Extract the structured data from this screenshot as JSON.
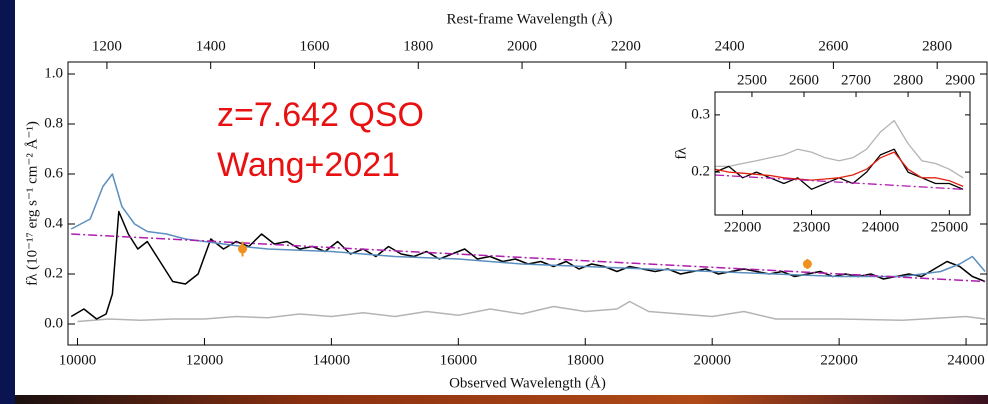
{
  "chart_data": [
    {
      "type": "line",
      "xlabel": "Observed Wavelength (Å)",
      "x2label": "Rest-frame Wavelength (Å)",
      "ylabel": "fλ (10⁻¹⁷ erg s⁻¹ cm⁻² Å⁻¹)",
      "annotations": [
        "z=7.642 QSO",
        "Wang+2021"
      ],
      "xlim": [
        9850,
        24330
      ],
      "xticks": [
        10000,
        12000,
        14000,
        16000,
        18000,
        20000,
        22000,
        24000
      ],
      "x2lim": [
        1125,
        2896
      ],
      "x2ticks": [
        1200,
        1400,
        1600,
        1800,
        2000,
        2200,
        2400,
        2600,
        2800
      ],
      "ylim": [
        -0.084,
        1.048
      ],
      "yticks": [
        {
          "value": 0,
          "label": "0.0"
        },
        0.2,
        0.4,
        0.6,
        0.8,
        {
          "value": 1,
          "label": "1.0"
        }
      ],
      "series": [
        {
          "type": "line",
          "color": "#b4b4b4",
          "x": [
            10000,
            10500,
            11000,
            11500,
            12000,
            12500,
            13000,
            13500,
            14000,
            14500,
            15000,
            15500,
            16000,
            16500,
            17000,
            17500,
            18000,
            18500,
            18700,
            19000,
            19500,
            20000,
            20500,
            21000,
            22000,
            23000,
            24000,
            24300
          ],
          "values": [
            0.01,
            0.02,
            0.015,
            0.02,
            0.02,
            0.03,
            0.025,
            0.04,
            0.03,
            0.045,
            0.03,
            0.05,
            0.035,
            0.06,
            0.04,
            0.07,
            0.05,
            0.06,
            0.09,
            0.05,
            0.04,
            0.03,
            0.05,
            0.02,
            0.02,
            0.015,
            0.03,
            0.02
          ]
        },
        {
          "type": "line",
          "color": "#000000",
          "x": [
            9900,
            10100,
            10300,
            10450,
            10550,
            10650,
            10800,
            10950,
            11100,
            11300,
            11500,
            11700,
            11900,
            12100,
            12300,
            12500,
            12700,
            12900,
            13100,
            13300,
            13500,
            13700,
            13900,
            14100,
            14300,
            14500,
            14700,
            14900,
            15100,
            15300,
            15500,
            15700,
            15900,
            16100,
            16300,
            16500,
            16700,
            16900,
            17100,
            17300,
            17500,
            17700,
            17900,
            18100,
            18300,
            18500,
            18700,
            18900,
            19100,
            19300,
            19500,
            19700,
            19900,
            20100,
            20300,
            20500,
            20700,
            20900,
            21100,
            21300,
            21500,
            21700,
            21900,
            22100,
            22300,
            22500,
            22700,
            22900,
            23100,
            23300,
            23500,
            23700,
            23900,
            24100,
            24300
          ],
          "values": [
            0.03,
            0.06,
            0.02,
            0.04,
            0.12,
            0.45,
            0.36,
            0.3,
            0.33,
            0.25,
            0.17,
            0.16,
            0.2,
            0.34,
            0.3,
            0.33,
            0.31,
            0.36,
            0.32,
            0.33,
            0.3,
            0.31,
            0.29,
            0.33,
            0.28,
            0.3,
            0.27,
            0.31,
            0.28,
            0.27,
            0.29,
            0.26,
            0.28,
            0.3,
            0.26,
            0.27,
            0.25,
            0.26,
            0.24,
            0.25,
            0.23,
            0.25,
            0.22,
            0.24,
            0.23,
            0.21,
            0.23,
            0.22,
            0.21,
            0.22,
            0.2,
            0.21,
            0.22,
            0.2,
            0.21,
            0.22,
            0.21,
            0.2,
            0.21,
            0.19,
            0.2,
            0.21,
            0.19,
            0.2,
            0.19,
            0.2,
            0.18,
            0.19,
            0.2,
            0.19,
            0.22,
            0.25,
            0.23,
            0.19,
            0.17
          ]
        },
        {
          "type": "line",
          "color": "#5b8fbf",
          "x": [
            9900,
            10200,
            10400,
            10550,
            10700,
            10900,
            11100,
            11400,
            11700,
            12000,
            12300,
            12600,
            13000,
            14000,
            15000,
            16000,
            17000,
            18000,
            19000,
            20000,
            21000,
            22000,
            23000,
            23600,
            23900,
            24100,
            24300
          ],
          "values": [
            0.38,
            0.42,
            0.55,
            0.6,
            0.47,
            0.4,
            0.37,
            0.36,
            0.34,
            0.33,
            0.32,
            0.31,
            0.3,
            0.29,
            0.27,
            0.26,
            0.24,
            0.23,
            0.22,
            0.21,
            0.2,
            0.19,
            0.19,
            0.21,
            0.24,
            0.27,
            0.21
          ]
        },
        {
          "type": "line",
          "color": "#b01cb0",
          "dash": "dashdot",
          "x": [
            9900,
            24300
          ],
          "values": [
            0.36,
            0.17
          ]
        },
        {
          "type": "errorbar",
          "color": "#f0901e",
          "x": [
            12600,
            21500
          ],
          "values": [
            0.3,
            0.24
          ],
          "errors": [
            0.03,
            0.02
          ]
        }
      ]
    },
    {
      "type": "line",
      "ylabel": "fλ",
      "xlim": [
        21600,
        25300
      ],
      "xticks": [
        22000,
        23000,
        24000,
        25000
      ],
      "x2lim": [
        2429,
        2919
      ],
      "x2ticks": [
        2500,
        2600,
        2700,
        2800,
        2900
      ],
      "ylim": [
        0.125,
        0.34
      ],
      "yticks": [
        0.2,
        0.3
      ],
      "series": [
        {
          "type": "line",
          "color": "#b4b4b4",
          "x": [
            21600,
            21800,
            22000,
            22200,
            22400,
            22600,
            22800,
            23000,
            23200,
            23400,
            23600,
            23800,
            24000,
            24200,
            24400,
            24600,
            24800,
            25000,
            25200
          ],
          "values": [
            0.21,
            0.21,
            0.215,
            0.22,
            0.225,
            0.23,
            0.24,
            0.235,
            0.225,
            0.22,
            0.225,
            0.24,
            0.27,
            0.29,
            0.25,
            0.22,
            0.215,
            0.205,
            0.19
          ]
        },
        {
          "type": "line",
          "color": "#000000",
          "x": [
            21600,
            21800,
            22000,
            22200,
            22400,
            22600,
            22800,
            23000,
            23200,
            23400,
            23600,
            23800,
            24000,
            24200,
            24400,
            24600,
            24800,
            25000,
            25200
          ],
          "values": [
            0.2,
            0.21,
            0.19,
            0.2,
            0.19,
            0.18,
            0.19,
            0.17,
            0.18,
            0.19,
            0.18,
            0.2,
            0.23,
            0.24,
            0.2,
            0.19,
            0.18,
            0.18,
            0.17
          ]
        },
        {
          "type": "line",
          "color": "#e02010",
          "x": [
            21600,
            21800,
            22000,
            22200,
            22400,
            22600,
            22800,
            23000,
            23200,
            23400,
            23600,
            23800,
            24000,
            24200,
            24400,
            24600,
            24800,
            25000,
            25200
          ],
          "values": [
            0.205,
            0.2,
            0.198,
            0.196,
            0.194,
            0.19,
            0.188,
            0.186,
            0.188,
            0.19,
            0.195,
            0.205,
            0.225,
            0.235,
            0.205,
            0.19,
            0.19,
            0.185,
            0.175
          ]
        },
        {
          "type": "line",
          "color": "#b01cb0",
          "dash": "dashdot",
          "x": [
            21600,
            25200
          ],
          "values": [
            0.195,
            0.17
          ]
        }
      ]
    }
  ]
}
